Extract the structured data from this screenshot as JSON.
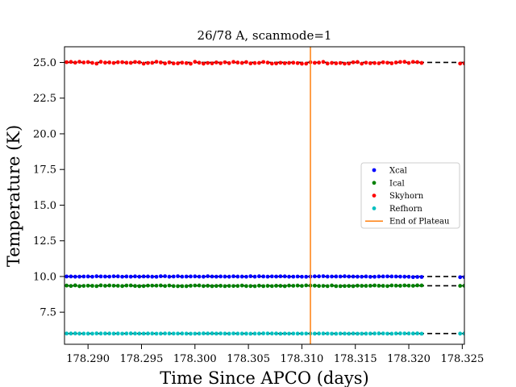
{
  "chart_data": {
    "type": "scatter",
    "title": "26/78 A, scanmode=1",
    "xlabel": "Time Since APCO (days)",
    "ylabel": "Temperature (K)",
    "xlim": [
      178.2878,
      178.3252
    ],
    "ylim": [
      5.25,
      26.1
    ],
    "xticks": [
      "178.290",
      "178.295",
      "178.300",
      "178.305",
      "178.310",
      "178.315",
      "178.320",
      "178.325"
    ],
    "yticks": [
      "7.5",
      "10.0",
      "12.5",
      "15.0",
      "17.5",
      "20.0",
      "22.5",
      "25.0"
    ],
    "legend_position": "center-right",
    "x_start": 178.288,
    "x_step": 0.0004,
    "x_gap": [
      178.3215,
      178.3245
    ],
    "series": [
      {
        "name": "Xcal",
        "color": "#0000ff",
        "mean": 10.0,
        "jitter": 0.02,
        "drift": -0.04
      },
      {
        "name": "Ical",
        "color": "#008000",
        "mean": 9.35,
        "jitter": 0.03,
        "drift": 0.0
      },
      {
        "name": "Skyhorn",
        "color": "#ff0000",
        "mean": 24.98,
        "jitter": 0.07,
        "drift": 0.0
      },
      {
        "name": "Refhorn",
        "color": "#00bfbf",
        "mean": 6.0,
        "jitter": 0.01,
        "drift": 0.0
      }
    ],
    "fit_lines": [
      {
        "y": 25.0,
        "style": "dashed",
        "color": "#000000"
      },
      {
        "y": 10.0,
        "style": "dashed",
        "color": "#000000"
      },
      {
        "y": 9.35,
        "style": "dashed",
        "color": "#000000"
      },
      {
        "y": 6.0,
        "style": "dashed",
        "color": "#000000"
      }
    ],
    "vline": {
      "name": "End of Plateau",
      "x": 178.3108,
      "color": "#ff7f0e"
    }
  }
}
